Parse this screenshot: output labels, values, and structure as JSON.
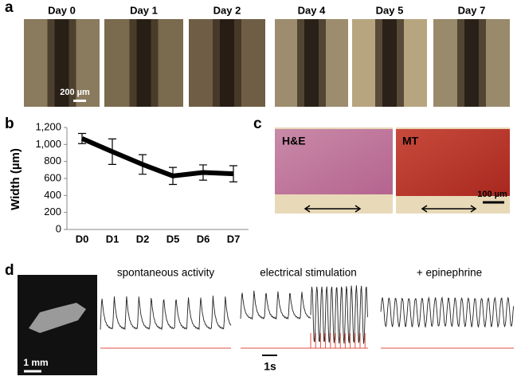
{
  "panel_a": {
    "label": "a",
    "days": [
      "Day 0",
      "Day 1",
      "Day 2",
      "Day 4",
      "Day 5",
      "Day 7"
    ],
    "scale_bar": "200 µm"
  },
  "panel_b": {
    "label": "b"
  },
  "panel_c": {
    "label": "c",
    "stains": [
      "H&E",
      "MT"
    ],
    "scale_bar": "100 µm"
  },
  "panel_d": {
    "label": "d",
    "scale_bar": "1 mm",
    "conditions": [
      "spontaneous activity",
      "electrical stimulation",
      "+ epinephrine"
    ],
    "time_bar": "1s"
  },
  "chart_data": {
    "type": "line",
    "y_label": "Width (µm)",
    "categories": [
      "D0",
      "D1",
      "D2",
      "D5",
      "D6",
      "D7"
    ],
    "values": [
      1070,
      915,
      765,
      630,
      670,
      655
    ],
    "errors": [
      60,
      150,
      115,
      100,
      90,
      95
    ],
    "color": "#000000",
    "ylim": [
      0,
      1200
    ],
    "yticks": [
      0,
      200,
      400,
      600,
      800,
      {
        "value": 1000,
        "label": "1,000"
      },
      {
        "value": 1200,
        "label": "1,200"
      }
    ]
  }
}
